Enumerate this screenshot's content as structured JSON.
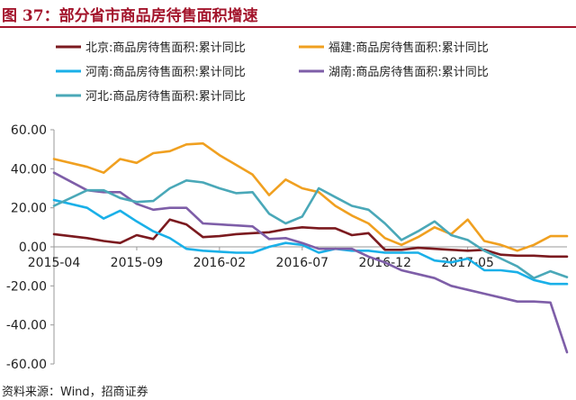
{
  "title": "图 37：部分省市商品房待售面积增速",
  "source": "资料来源：Wind，招商证券",
  "chart_data": {
    "type": "line",
    "title": "",
    "xlabel": "",
    "ylabel": "",
    "ylim": [
      -60,
      60
    ],
    "yticks": [
      "60.00",
      "40.00",
      "20.00",
      "0.00",
      "-20.00",
      "-40.00",
      "-60.00"
    ],
    "xticks": [
      "2015-04",
      "2015-09",
      "2016-02",
      "2016-07",
      "2016-12",
      "2017-05"
    ],
    "x": [
      "2015-04",
      "2015-05",
      "2015-06",
      "2015-07",
      "2015-08",
      "2015-09",
      "2015-10",
      "2015-11",
      "2015-12",
      "2016-01",
      "2016-02",
      "2016-03",
      "2016-04",
      "2016-05",
      "2016-06",
      "2016-07",
      "2016-08",
      "2016-09",
      "2016-10",
      "2016-11",
      "2016-12",
      "2017-01",
      "2017-02",
      "2017-03",
      "2017-04",
      "2017-05",
      "2017-06",
      "2017-07",
      "2017-08",
      "2017-09",
      "2017-10",
      "2017-11"
    ],
    "grid": false,
    "legend_position": "top",
    "series": [
      {
        "name": "北京:商品房待售面积:累计同比",
        "color": "#7b1a1f",
        "values": [
          6.5,
          null,
          4.5,
          3,
          2,
          6,
          4,
          14,
          11.5,
          5,
          5.5,
          6.5,
          7,
          7.5,
          9,
          10,
          9.5,
          9.5,
          6,
          7,
          -1.5,
          -1.5,
          -0.5,
          -1,
          -1.5,
          -2,
          -1.5,
          -4,
          -4.5,
          -4.5,
          -5,
          -5
        ]
      },
      {
        "name": "福建:商品房待售面积:累计同比",
        "color": "#f0a020",
        "values": [
          45,
          null,
          41,
          38,
          45,
          43,
          48,
          49,
          52.5,
          53,
          47,
          42,
          37,
          26.5,
          34.5,
          30,
          28,
          21,
          16,
          12,
          4.5,
          1,
          5,
          10,
          6.5,
          14,
          3,
          1,
          -2,
          1,
          5.5,
          5.5
        ]
      },
      {
        "name": "河南:商品房待售面积:累计同比",
        "color": "#1ab0e8",
        "values": [
          24,
          null,
          20,
          14.5,
          18.5,
          13,
          8,
          4.5,
          -1,
          -2,
          -2.5,
          -3,
          -3,
          0,
          2,
          1,
          -3,
          -1,
          -2,
          -2,
          -3,
          -3,
          -3,
          -7,
          -8,
          -6,
          -12,
          -12,
          -13,
          -17,
          -19,
          -19
        ]
      },
      {
        "name": "湖南:商品房待售面积:累计同比",
        "color": "#7e5ea8",
        "values": [
          38,
          null,
          29,
          28,
          28,
          22,
          19,
          20,
          20,
          12,
          11.5,
          11,
          10.5,
          4,
          4.5,
          2,
          -1,
          -1,
          -1,
          -5,
          -8,
          -12,
          -14,
          -16,
          -20,
          -22,
          -24,
          -26,
          -28,
          -28,
          -28.5,
          -54
        ]
      },
      {
        "name": "河北:商品房待售面积:累计同比",
        "color": "#4aa8b8",
        "values": [
          21,
          null,
          29,
          29,
          25,
          23,
          23.5,
          30,
          34,
          33,
          30,
          27.5,
          28,
          17,
          12,
          15.5,
          30,
          25.5,
          21,
          19,
          12,
          3.5,
          8,
          13,
          6,
          3.5,
          -2,
          -6,
          -10,
          -16,
          -12.5,
          -15.5
        ]
      }
    ]
  }
}
